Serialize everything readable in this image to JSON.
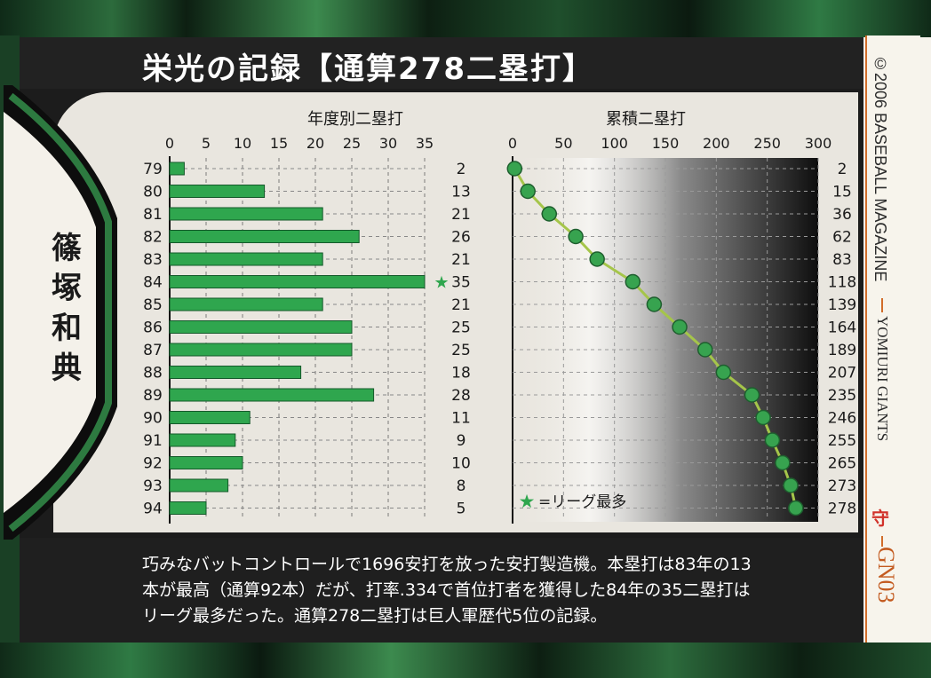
{
  "title": "栄光の記録【通算278二塁打】",
  "player_name": "篠塚和典",
  "description": [
    "巧みなバットコントロールで1696安打を放った安打製造機。本塁打は83年の13",
    "本が最高（通算92本）だが、打率.334で首位打者を獲得した84年の35二塁打は",
    "リーグ最多だった。通算278二塁打は巨人軍歴代5位の記録。"
  ],
  "sidebar": {
    "publisher": "©2006 BASEBALL MAGAZINE",
    "team": "YOMIURI GIANTS",
    "card_number": "GN03",
    "logo_glyph": "守"
  },
  "colors": {
    "bar_fill": "#2fa64e",
    "dot_fill": "#37a34f",
    "line": "#a5c54a",
    "background_dark": "#1c1c1c"
  },
  "chart_data": [
    {
      "type": "bar",
      "orientation": "horizontal",
      "title": "年度別二塁打",
      "categories": [
        "79",
        "80",
        "81",
        "82",
        "83",
        "84",
        "85",
        "86",
        "87",
        "88",
        "89",
        "90",
        "91",
        "92",
        "93",
        "94"
      ],
      "values": [
        2,
        13,
        21,
        26,
        21,
        35,
        21,
        25,
        25,
        18,
        28,
        11,
        9,
        10,
        8,
        5
      ],
      "value_labels": [
        "2",
        "13",
        "21",
        "26",
        "21",
        "★35",
        "21",
        "25",
        "25",
        "18",
        "28",
        "11",
        "9",
        "10",
        "8",
        "5"
      ],
      "xticks": [
        "0",
        "5",
        "10",
        "15",
        "20",
        "25",
        "30",
        "35"
      ],
      "xlim": [
        0,
        35
      ],
      "grid": true
    },
    {
      "type": "line",
      "title": "累積二塁打",
      "values": [
        2,
        15,
        36,
        62,
        83,
        118,
        139,
        164,
        189,
        207,
        235,
        246,
        255,
        265,
        273,
        278
      ],
      "value_labels": [
        "2",
        "15",
        "36",
        "62",
        "83",
        "118",
        "139",
        "164",
        "189",
        "207",
        "235",
        "246",
        "255",
        "265",
        "273",
        "278"
      ],
      "xticks": [
        "0",
        "50",
        "100",
        "150",
        "200",
        "250",
        "300"
      ],
      "xlim": [
        0,
        300
      ],
      "grid": true,
      "legend_star": "★",
      "legend_text": "=リーグ最多",
      "legend_position": "bottom-left"
    }
  ]
}
